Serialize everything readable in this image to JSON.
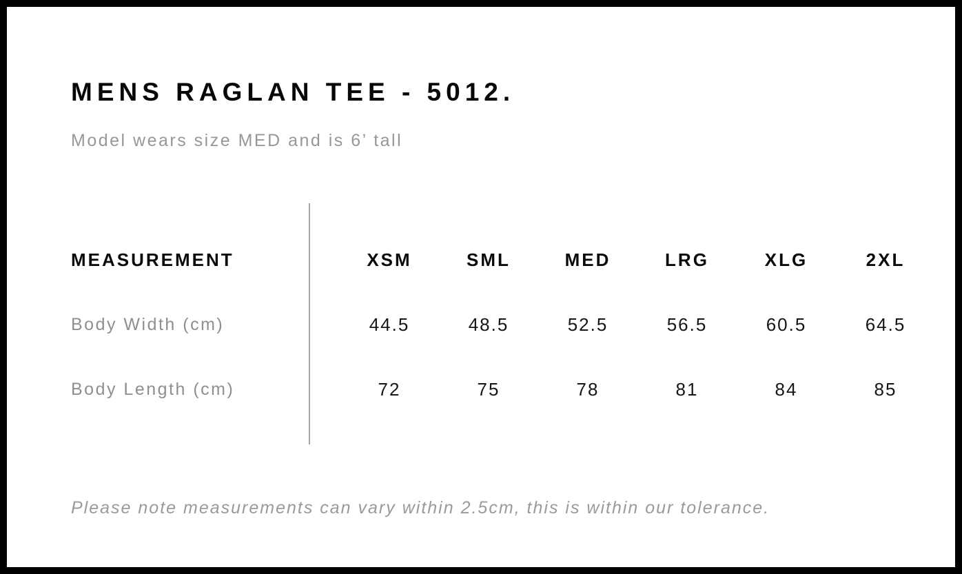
{
  "page": {
    "title": "MENS RAGLAN TEE - 5012.",
    "subtitle": "Model wears size MED and is 6’ tall",
    "footnote": "Please note measurements can vary within 2.5cm, this is within our tolerance."
  },
  "size_table": {
    "header_label": "MEASUREMENT",
    "sizes": [
      "XSM",
      "SML",
      "MED",
      "LRG",
      "XLG",
      "2XL"
    ],
    "rows": [
      {
        "label": "Body Width (cm)",
        "values": [
          "44.5",
          "48.5",
          "52.5",
          "56.5",
          "60.5",
          "64.5"
        ]
      },
      {
        "label": "Body Length (cm)",
        "values": [
          "72",
          "75",
          "78",
          "81",
          "84",
          "85"
        ]
      }
    ]
  },
  "colors": {
    "border": "#000000",
    "heading_text": "#070707",
    "muted_text": "#979797",
    "divider": "#a6a6a6",
    "value_text": "#161616"
  }
}
